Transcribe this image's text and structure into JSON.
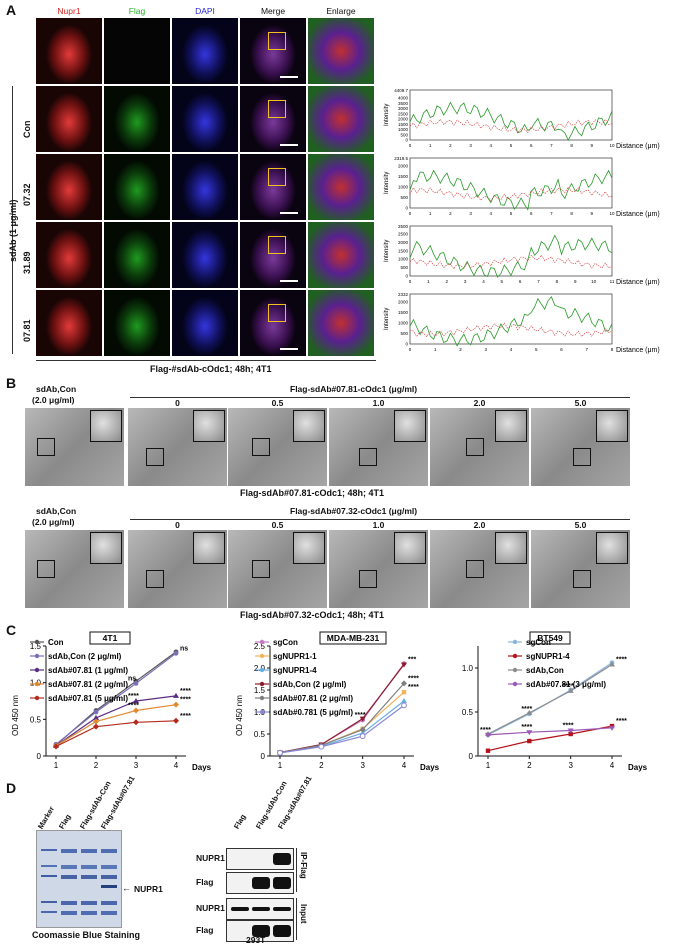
{
  "panel_a": {
    "letter": "A",
    "channel_headers": [
      "Nupr1",
      "Flag",
      "DAPI",
      "Merge",
      "Enlarge"
    ],
    "row_group_label": "sdAb (1 μg/ml)",
    "row_labels": [
      "Con",
      "07.32",
      "31.89",
      "07.81"
    ],
    "caption": "Flag-#sdAb-cOdc1; 48h; 4T1",
    "profile_axis": {
      "y_label": "Intensity",
      "x_label": "Distance (μm)"
    },
    "profiles": [
      {
        "y_top": "4409.7",
        "y_ticks": [
          "4000",
          "3500",
          "3000",
          "2500",
          "2000",
          "1500",
          "1000",
          "500",
          "0"
        ],
        "x_ticks": [
          "0",
          "1",
          "2",
          "3",
          "4",
          "5",
          "6",
          "7",
          "8",
          "9",
          "10"
        ]
      },
      {
        "y_top": "2319.5",
        "y_ticks": [
          "2000",
          "1500",
          "1000",
          "500",
          "0"
        ],
        "x_ticks": [
          "0",
          "1",
          "2",
          "3",
          "4",
          "5",
          "6",
          "7",
          "8",
          "9",
          "10"
        ]
      },
      {
        "y_top": "2500",
        "y_ticks": [
          "2500",
          "2000",
          "1500",
          "1000",
          "500",
          "0"
        ],
        "x_ticks": [
          "0",
          "1",
          "2",
          "3",
          "4",
          "5",
          "6",
          "7",
          "8",
          "9",
          "10",
          "11"
        ]
      },
      {
        "y_top": "2332",
        "y_ticks": [
          "2000",
          "1500",
          "1000",
          "500",
          "0"
        ],
        "x_ticks": [
          "0",
          "1",
          "2",
          "3",
          "4",
          "5",
          "6",
          "7",
          "8"
        ]
      }
    ]
  },
  "panel_b": {
    "letter": "B",
    "rows": [
      {
        "control_label_1": "sdAb,Con",
        "control_label_2": "(2.0 μg/ml)",
        "header": "Flag-sdAb#07.81-cOdc1 (μg/ml)",
        "doses": [
          "0",
          "0.5",
          "1.0",
          "2.0",
          "5.0"
        ],
        "caption": "Flag-sdAb#07.81-cOdc1; 48h; 4T1"
      },
      {
        "control_label_1": "sdAb,Con",
        "control_label_2": "(2.0 μg/ml)",
        "header": "Flag-sdAb#07.32-cOdc1 (μg/ml)",
        "doses": [
          "0",
          "0.5",
          "1.0",
          "2.0",
          "5.0"
        ],
        "caption": "Flag-sdAb#07.32-cOdc1; 48h; 4T1"
      }
    ]
  },
  "panel_c": {
    "letter": "C",
    "charts": [
      {
        "cell_line": "4T1",
        "ylabel": "OD 450 nm",
        "xlabel": "Days",
        "ylim": [
          0,
          1.5
        ],
        "y_ticks": [
          "0",
          "0.5",
          "1.0",
          "1.5"
        ],
        "x_ticks": [
          "1",
          "2",
          "3",
          "4"
        ],
        "legend": [
          "Con",
          "sdAb,Con (2 μg/ml)",
          "sdAb#07.81 (1 μg/ml)",
          "sdAb#07.81 (2 μg/ml)",
          "sdAb#07.81 (5 μg/ml)"
        ],
        "stars": [
          {
            "x": 3,
            "text": "ns"
          },
          {
            "x": 4,
            "text": "ns"
          },
          {
            "x": 3,
            "text": "****"
          },
          {
            "x": 3,
            "text": "****"
          },
          {
            "x": 4,
            "text": "****"
          },
          {
            "x": 4,
            "text": "****"
          },
          {
            "x": 4,
            "text": "****"
          }
        ]
      },
      {
        "cell_line": "MDA-MB-231",
        "ylabel": "OD 450 nm",
        "xlabel": "Days",
        "ylim": [
          0,
          2.5
        ],
        "y_ticks": [
          "0",
          "0.5",
          "1.0",
          "1.5",
          "2.0",
          "2.5"
        ],
        "x_ticks": [
          "1",
          "2",
          "3",
          "4"
        ],
        "legend": [
          "sgCon",
          "sgNUPR1-1",
          "sgNUPR1-4",
          "sdAb,Con (2 μg/ml)",
          "sdAb#07.81 (2 μg/ml)",
          "sdAb#0.781 (5 μg/ml)"
        ],
        "stars": [
          {
            "x": 3,
            "text": "****"
          },
          {
            "x": 4,
            "text": "***"
          },
          {
            "x": 4,
            "text": "****"
          },
          {
            "x": 4,
            "text": "****"
          }
        ]
      },
      {
        "cell_line": "BT549",
        "ylabel": "",
        "xlabel": "Days",
        "ylim": [
          0,
          1.25
        ],
        "y_ticks": [
          "0",
          "0.5",
          "1.0"
        ],
        "x_ticks": [
          "1",
          "2",
          "3",
          "4"
        ],
        "legend": [
          "sgCon",
          "sgNUPR1-4",
          "sdAb,Con",
          "sdAb#07.81 (3 μg/ml)"
        ],
        "stars": [
          {
            "x": 1,
            "text": "****"
          },
          {
            "x": 2,
            "text": "****"
          },
          {
            "x": 2,
            "text": "****"
          },
          {
            "x": 3,
            "text": "****"
          },
          {
            "x": 3,
            "text": "****"
          },
          {
            "x": 4,
            "text": "****"
          },
          {
            "x": 4,
            "text": "****"
          }
        ]
      }
    ]
  },
  "panel_d": {
    "letter": "D",
    "gel_lanes": [
      "Marker",
      "Flag",
      "Flag-sdAb-Con",
      "Flag-sdAb#07.81"
    ],
    "gel_arrow_label": "NUPR1",
    "gel_caption": "Coomassie Blue Staining",
    "blot_lanes": [
      "Flag",
      "Flag-sdAb-Con",
      "Flag-sdAb#07.81"
    ],
    "blot_rows": [
      "NUPR1",
      "Flag",
      "NUPR1",
      "Flag"
    ],
    "blot_groups": [
      "IP-Flag",
      "Input"
    ],
    "blot_caption": "293T"
  },
  "chart_data": [
    {
      "type": "line",
      "title": "4T1",
      "xlabel": "Days",
      "ylabel": "OD 450 nm",
      "ylim": [
        0,
        1.5
      ],
      "x": [
        1,
        2,
        3,
        4
      ],
      "series": [
        {
          "name": "Con",
          "color": "#555555",
          "marker": "circle",
          "values": [
            0.15,
            0.62,
            1.02,
            1.42
          ]
        },
        {
          "name": "sdAb,Con (2 μg/ml)",
          "color": "#7b6fb8",
          "marker": "circle",
          "values": [
            0.16,
            0.6,
            0.99,
            1.4
          ]
        },
        {
          "name": "sdAb#07.81 (1 μg/ml)",
          "color": "#5b2c83",
          "marker": "triangle",
          "values": [
            0.14,
            0.52,
            0.75,
            0.82
          ]
        },
        {
          "name": "sdAb#07.81 (2 μg/ml)",
          "color": "#e08a2e",
          "marker": "diamond",
          "values": [
            0.14,
            0.47,
            0.62,
            0.7
          ]
        },
        {
          "name": "sdAb#07.81 (5 μg/ml)",
          "color": "#b52a1e",
          "marker": "diamond",
          "values": [
            0.13,
            0.4,
            0.46,
            0.48
          ]
        }
      ]
    },
    {
      "type": "line",
      "title": "MDA-MB-231",
      "xlabel": "Days",
      "ylabel": "OD 450 nm",
      "ylim": [
        0,
        2.5
      ],
      "x": [
        1,
        2,
        3,
        4
      ],
      "series": [
        {
          "name": "sgCon",
          "color": "#c478c6",
          "marker": "circle",
          "values": [
            0.08,
            0.26,
            0.82,
            2.1
          ]
        },
        {
          "name": "sgNUPR1-1",
          "color": "#f2b35a",
          "marker": "square",
          "values": [
            0.08,
            0.24,
            0.62,
            1.45
          ]
        },
        {
          "name": "sgNUPR1-4",
          "color": "#6aaee0",
          "marker": "triangle",
          "values": [
            0.07,
            0.22,
            0.52,
            1.25
          ]
        },
        {
          "name": "sdAb,Con (2 μg/ml)",
          "color": "#8b1a2b",
          "marker": "triangle-down",
          "values": [
            0.08,
            0.26,
            0.85,
            2.08
          ]
        },
        {
          "name": "sdAb#07.81 (2 μg/ml)",
          "color": "#7f7f7f",
          "marker": "diamond",
          "values": [
            0.08,
            0.24,
            0.6,
            1.65
          ]
        },
        {
          "name": "sdAb#0.781 (5 μg/ml)",
          "color": "#8a86d6",
          "marker": "circle-open",
          "values": [
            0.07,
            0.21,
            0.45,
            1.15
          ]
        }
      ]
    },
    {
      "type": "line",
      "title": "BT549",
      "xlabel": "Days",
      "ylabel": "",
      "ylim": [
        0,
        1.25
      ],
      "x": [
        1,
        2,
        3,
        4
      ],
      "series": [
        {
          "name": "sgCon",
          "color": "#8ab4e0",
          "marker": "circle",
          "values": [
            0.24,
            0.48,
            0.75,
            1.06
          ]
        },
        {
          "name": "sgNUPR1-4",
          "color": "#b5121b",
          "marker": "square",
          "values": [
            0.06,
            0.17,
            0.25,
            0.34
          ]
        },
        {
          "name": "sdAb,Con",
          "color": "#8c8c8c",
          "marker": "triangle",
          "values": [
            0.25,
            0.49,
            0.74,
            1.04
          ]
        },
        {
          "name": "sdAb#07.81 (3 μg/ml)",
          "color": "#9b59b6",
          "marker": "triangle-down",
          "values": [
            0.24,
            0.27,
            0.29,
            0.32
          ]
        }
      ]
    }
  ]
}
